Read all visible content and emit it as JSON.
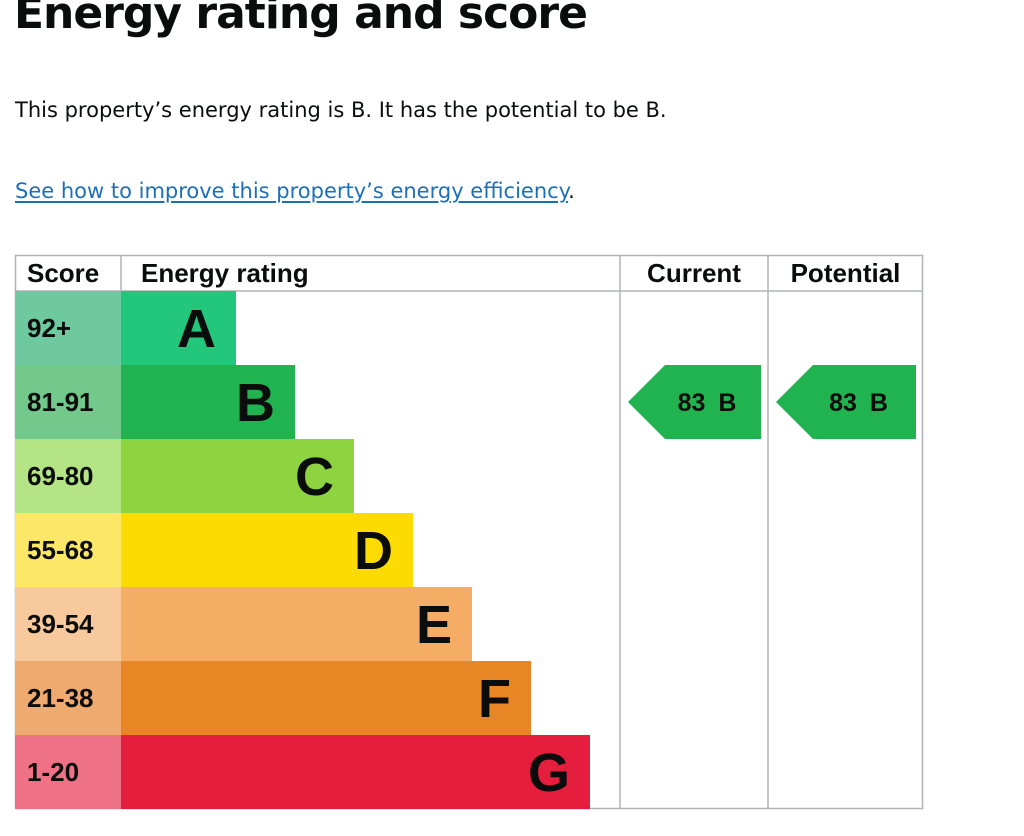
{
  "heading": "Energy rating and score",
  "summary": "This property’s energy rating is B. It has the potential to be B.",
  "improve_link": {
    "text": "See how to improve this property’s energy efficiency",
    "suffix": "."
  },
  "chart_data": {
    "type": "bar",
    "headers": {
      "score": "Score",
      "rating": "Energy rating",
      "current": "Current",
      "potential": "Potential"
    },
    "bands": [
      {
        "letter": "A",
        "score_range": "92+",
        "bar_color": "#23c77c",
        "score_bg": "#6ec8a0",
        "relative_length": 1
      },
      {
        "letter": "B",
        "score_range": "81-91",
        "bar_color": "#22b351",
        "score_bg": "#73c98c",
        "relative_length": 2
      },
      {
        "letter": "C",
        "score_range": "69-80",
        "bar_color": "#8dd440",
        "score_bg": "#b4e484",
        "relative_length": 3
      },
      {
        "letter": "D",
        "score_range": "55-68",
        "bar_color": "#fbdb00",
        "score_bg": "#fce766",
        "relative_length": 4
      },
      {
        "letter": "E",
        "score_range": "39-54",
        "bar_color": "#f5ac64",
        "score_bg": "#f7c99c",
        "relative_length": 5
      },
      {
        "letter": "F",
        "score_range": "21-38",
        "bar_color": "#e88625",
        "score_bg": "#efaa70",
        "relative_length": 6
      },
      {
        "letter": "G",
        "score_range": "1-20",
        "bar_color": "#e41e3c",
        "score_bg": "#ef7185",
        "relative_length": 7
      }
    ],
    "current": {
      "score": 83,
      "letter": "B",
      "label": "83 B"
    },
    "potential": {
      "score": 83,
      "letter": "B",
      "label": "83 B"
    },
    "marker_color": "#22b351"
  }
}
